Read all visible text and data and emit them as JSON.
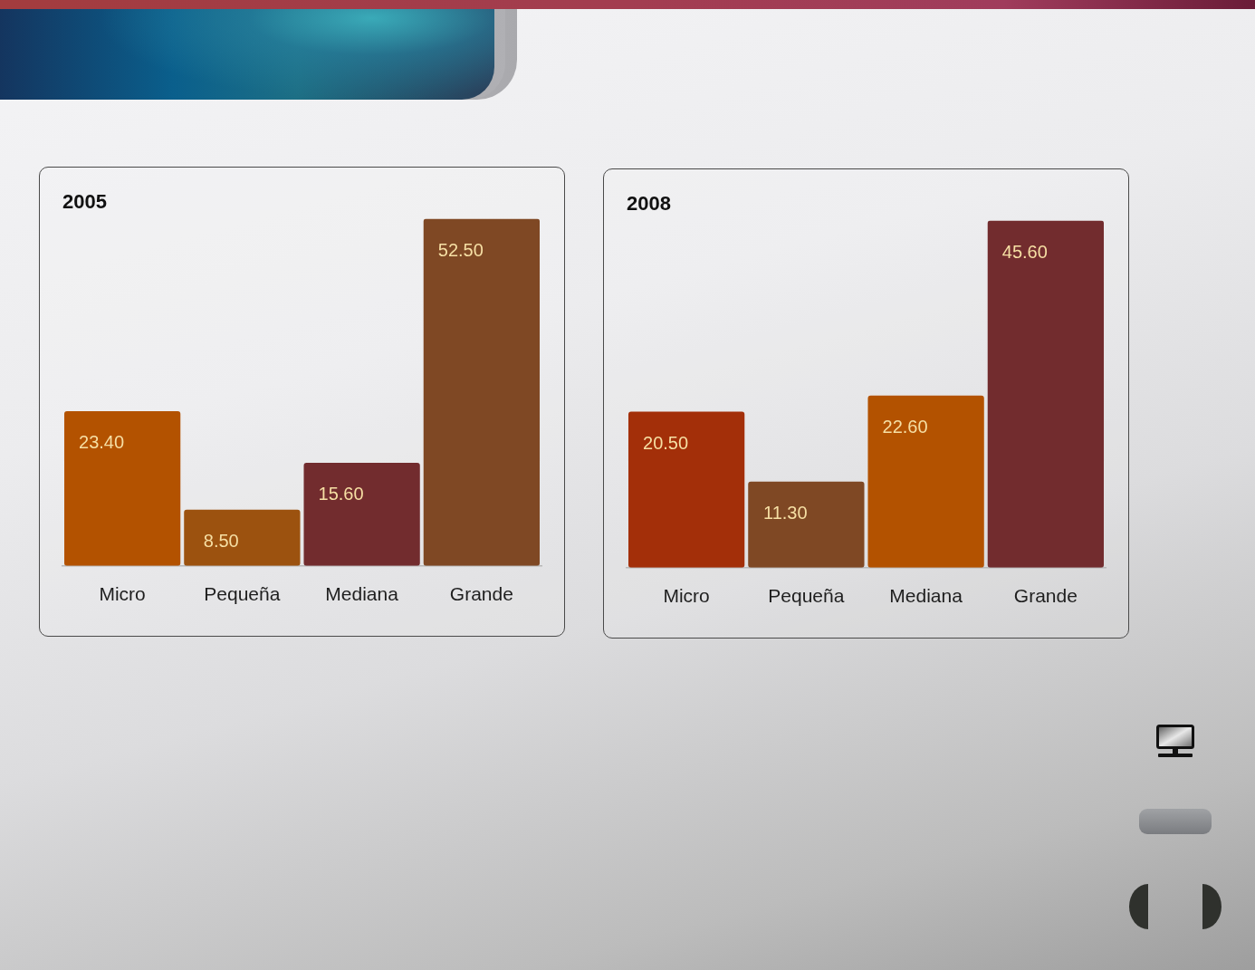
{
  "chart_data": [
    {
      "type": "bar",
      "title": "2005",
      "categories": [
        "Micro",
        "Pequeña",
        "Mediana",
        "Grande"
      ],
      "values": [
        23.4,
        8.5,
        15.6,
        52.5
      ],
      "colors": [
        "#b35200",
        "#9c520f",
        "#722c2e",
        "#7f4824"
      ],
      "value_labels": [
        "23.40",
        "8.50",
        "15.60",
        "52.50"
      ],
      "tick_labels": "x"
    },
    {
      "type": "bar",
      "title": "2008",
      "categories": [
        "Micro",
        "Pequeña",
        "Mediana",
        "Grande"
      ],
      "values": [
        20.5,
        11.3,
        22.6,
        45.6
      ],
      "colors": [
        "#a32f09",
        "#7f4824",
        "#b35200",
        "#722c2e"
      ],
      "value_labels": [
        "20.50",
        "11.30",
        "22.60",
        "45.60"
      ],
      "tick_labels": "x"
    }
  ]
}
